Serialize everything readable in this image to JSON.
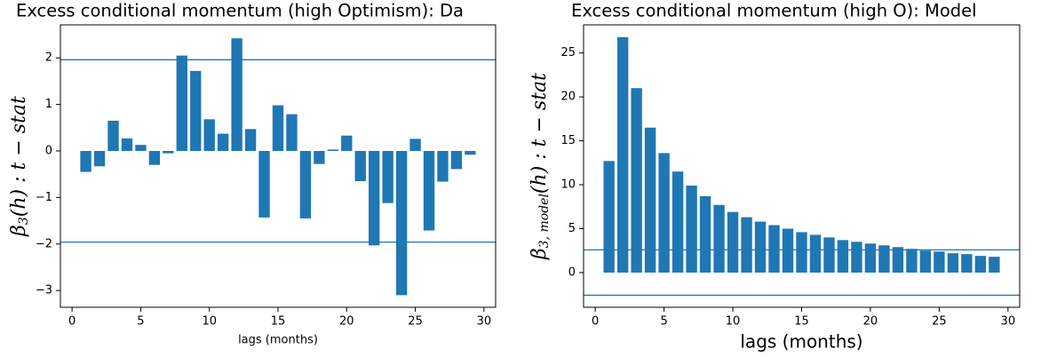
{
  "chart_data": [
    {
      "type": "bar",
      "title": "Excess conditional momentum (high Optimism): Da",
      "xlabel": "lags (months)",
      "ylabel": {
        "symbol": "β",
        "subscript": "3",
        "rest": "(h) : t − stat"
      },
      "x": [
        1,
        2,
        3,
        4,
        5,
        6,
        7,
        8,
        9,
        10,
        11,
        12,
        13,
        14,
        15,
        16,
        17,
        18,
        19,
        20,
        21,
        22,
        23,
        24,
        25,
        26,
        27,
        28,
        29
      ],
      "values": [
        -0.45,
        -0.33,
        0.65,
        0.27,
        0.13,
        -0.3,
        -0.05,
        2.05,
        1.72,
        0.68,
        0.37,
        2.42,
        0.47,
        -1.43,
        0.98,
        0.79,
        -1.45,
        -0.28,
        0.03,
        0.33,
        -0.65,
        -2.03,
        -1.12,
        -3.1,
        0.26,
        -1.71,
        -0.66,
        -0.39,
        -0.08
      ],
      "color": "#1f77b4",
      "hlines": [
        1.96,
        -1.96
      ],
      "xlim": [
        -0.85,
        30.85
      ],
      "ylim": [
        -3.36,
        2.71
      ],
      "xticks": [
        0,
        5,
        10,
        15,
        20,
        25,
        30
      ],
      "yticks": [
        {
          "value": -3,
          "label": "−3"
        },
        {
          "value": -2,
          "label": "−2"
        },
        {
          "value": -1,
          "label": "−1"
        },
        0,
        1,
        2
      ]
    },
    {
      "type": "bar",
      "title": "Excess conditional momentum (high O): Model",
      "xlabel": "lags (months)",
      "ylabel": {
        "symbol": "β",
        "subscript": "3, model",
        "rest": "(h) : t − stat"
      },
      "x": [
        1,
        2,
        3,
        4,
        5,
        6,
        7,
        8,
        9,
        10,
        11,
        12,
        13,
        14,
        15,
        16,
        17,
        18,
        19,
        20,
        21,
        22,
        23,
        24,
        25,
        26,
        27,
        28,
        29
      ],
      "values": [
        12.7,
        26.8,
        21.0,
        16.5,
        13.6,
        11.5,
        9.9,
        8.7,
        7.7,
        6.9,
        6.3,
        5.8,
        5.4,
        5.0,
        4.6,
        4.3,
        4.0,
        3.7,
        3.5,
        3.3,
        3.1,
        2.9,
        2.7,
        2.5,
        2.4,
        2.2,
        2.1,
        1.9,
        1.8
      ],
      "color": "#1f77b4",
      "hlines": [
        2.58,
        -2.58
      ],
      "xlim": [
        -0.85,
        30.85
      ],
      "ylim": [
        -3.95,
        28.2
      ],
      "xticks": [
        0,
        5,
        10,
        15,
        20,
        25,
        30
      ],
      "yticks": [
        0,
        5,
        10,
        15,
        20,
        25
      ]
    }
  ]
}
